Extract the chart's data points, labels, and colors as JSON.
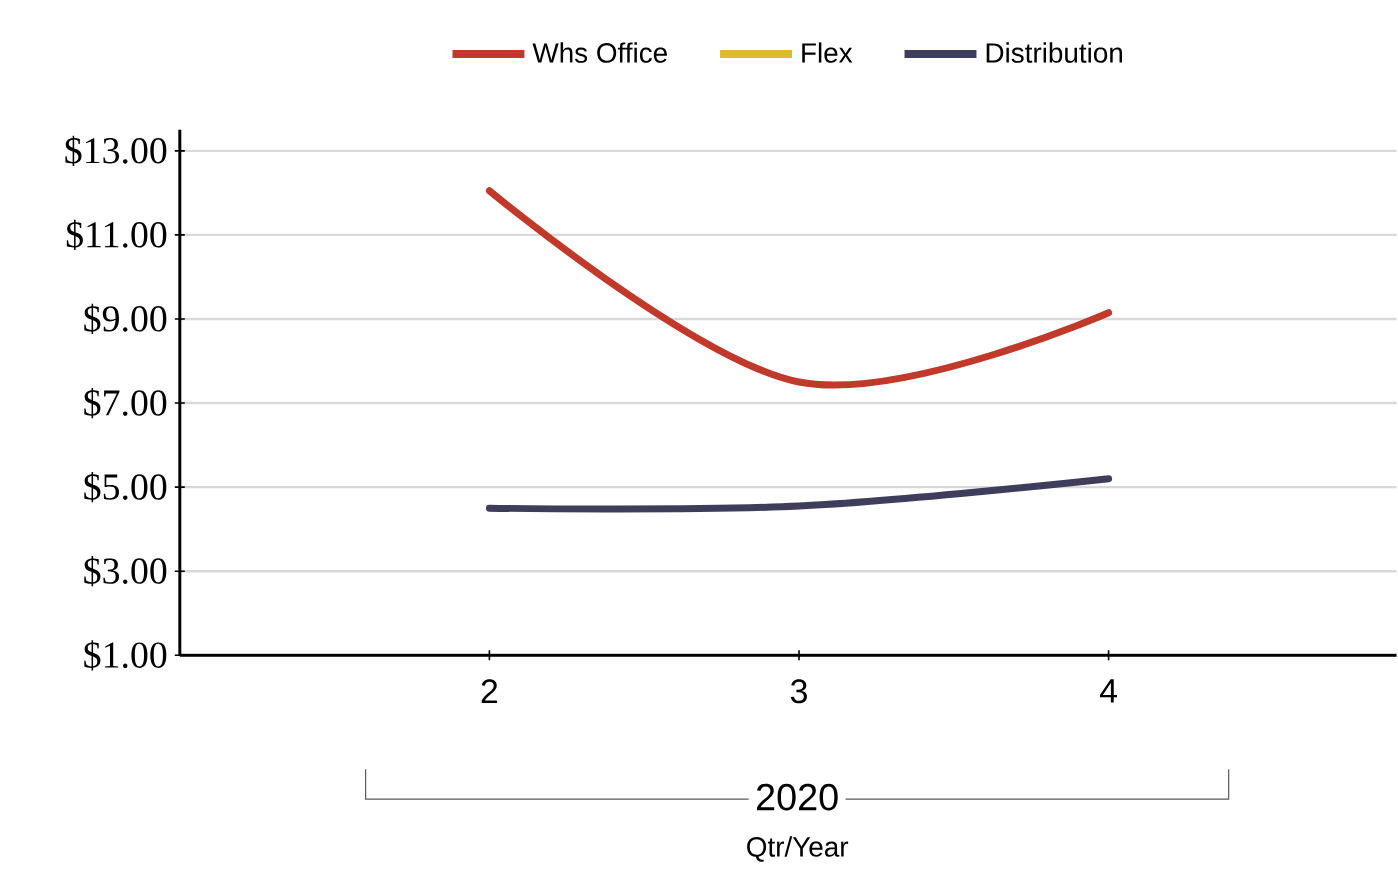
{
  "chart_data": {
    "type": "line",
    "xlabel": "Qtr/Year",
    "categories": [
      "2",
      "3",
      "4"
    ],
    "annotations": [
      "2020"
    ],
    "series": [
      {
        "name": "Whs Office",
        "color": "#c0392b",
        "values": [
          12.05,
          7.5,
          9.15
        ]
      },
      {
        "name": "Flex",
        "color": "#e2b831",
        "values": [
          null,
          null,
          null
        ]
      },
      {
        "name": "Distribution",
        "color": "#3f3d5c",
        "values": [
          4.5,
          4.55,
          5.2
        ]
      }
    ],
    "ylim": [
      1,
      13.5
    ],
    "yticks": [
      {
        "value": 1,
        "label": "$1.00"
      },
      {
        "value": 3,
        "label": "$3.00"
      },
      {
        "value": 5,
        "label": "$5.00"
      },
      {
        "value": 7,
        "label": "$7.00"
      },
      {
        "value": 9,
        "label": "$9.00"
      },
      {
        "value": 11,
        "label": "$11.00"
      },
      {
        "value": 13,
        "label": "$13.00"
      }
    ],
    "grid": "y",
    "legend": "top",
    "marker": "none",
    "line_style": "solid"
  }
}
